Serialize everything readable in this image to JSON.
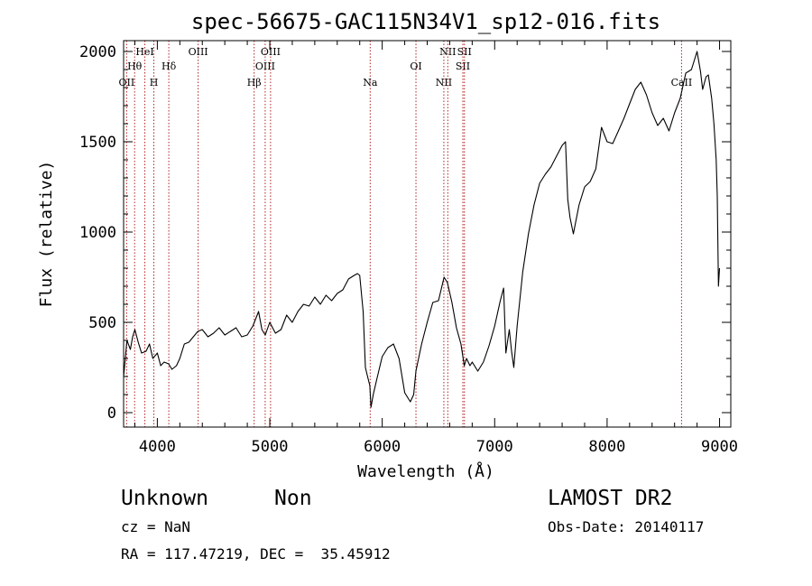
{
  "chart_data": {
    "type": "line",
    "title": "spec-56675-GAC115N34V1_sp12-016.fits",
    "xlabel": "Wavelength (Å)",
    "ylabel": "Flux (relative)",
    "xlim": [
      3700,
      9100
    ],
    "ylim": [
      -80,
      2060
    ],
    "xticks": [
      4000,
      5000,
      6000,
      7000,
      8000,
      9000
    ],
    "yticks": [
      0,
      500,
      1000,
      1500,
      2000
    ],
    "grid": false,
    "series": [
      {
        "values_note_unused": "",
        "x": [
          3700,
          3730,
          3760,
          3780,
          3800,
          3830,
          3860,
          3900,
          3930,
          3960,
          4000,
          4030,
          4060,
          4100,
          4130,
          4170,
          4200,
          4240,
          4280,
          4320,
          4360,
          4400,
          4450,
          4500,
          4550,
          4600,
          4650,
          4700,
          4750,
          4800,
          4850,
          4900,
          4930,
          4960,
          5000,
          5050,
          5100,
          5150,
          5200,
          5250,
          5300,
          5350,
          5400,
          5450,
          5500,
          5550,
          5600,
          5650,
          5700,
          5750,
          5780,
          5800,
          5830,
          5850,
          5870,
          5890,
          5900,
          5920,
          5950,
          6000,
          6050,
          6100,
          6150,
          6200,
          6250,
          6280,
          6300,
          6350,
          6400,
          6450,
          6500,
          6550,
          6580,
          6620,
          6660,
          6700,
          6730,
          6750,
          6780,
          6800,
          6850,
          6900,
          6950,
          7000,
          7050,
          7080,
          7100,
          7130,
          7150,
          7170,
          7200,
          7250,
          7300,
          7350,
          7400,
          7450,
          7500,
          7550,
          7600,
          7630,
          7650,
          7670,
          7700,
          7750,
          7800,
          7850,
          7900,
          7950,
          8000,
          8050,
          8100,
          8150,
          8200,
          8250,
          8300,
          8350,
          8400,
          8450,
          8500,
          8550,
          8600,
          8650,
          8700,
          8750,
          8800,
          8830,
          8850,
          8880,
          8900,
          8930,
          8950,
          8970,
          8980,
          8990,
          9000
        ],
        "y": [
          200,
          400,
          350,
          420,
          460,
          390,
          330,
          340,
          380,
          300,
          330,
          260,
          280,
          270,
          240,
          260,
          300,
          380,
          390,
          420,
          450,
          460,
          420,
          440,
          470,
          430,
          450,
          470,
          420,
          430,
          480,
          560,
          460,
          430,
          500,
          440,
          460,
          540,
          500,
          560,
          600,
          590,
          640,
          600,
          650,
          620,
          660,
          680,
          740,
          760,
          770,
          760,
          560,
          250,
          200,
          150,
          30,
          100,
          180,
          310,
          360,
          380,
          300,
          110,
          60,
          100,
          230,
          380,
          500,
          610,
          620,
          750,
          720,
          610,
          470,
          380,
          260,
          300,
          260,
          280,
          230,
          280,
          370,
          480,
          620,
          690,
          330,
          460,
          340,
          250,
          480,
          780,
          990,
          1150,
          1270,
          1320,
          1360,
          1420,
          1480,
          1500,
          1180,
          1080,
          990,
          1150,
          1250,
          1280,
          1350,
          1580,
          1500,
          1490,
          1560,
          1630,
          1710,
          1790,
          1830,
          1760,
          1660,
          1590,
          1630,
          1560,
          1660,
          1740,
          1880,
          1900,
          2000,
          1890,
          1790,
          1860,
          1870,
          1740,
          1600,
          1400,
          1200,
          700,
          800
        ]
      }
    ]
  },
  "lines": [
    {
      "label": "OII",
      "wl": 3727,
      "row": 3
    },
    {
      "label": "Hθ",
      "wl": 3798,
      "row": 2
    },
    {
      "label": "HeI",
      "wl": 3889,
      "row": 1
    },
    {
      "label": "H",
      "wl": 3969,
      "row": 3
    },
    {
      "label": "Hδ",
      "wl": 4102,
      "row": 2
    },
    {
      "label": "OIII",
      "wl": 4363,
      "row": 1
    },
    {
      "label": "Hβ",
      "wl": 4861,
      "row": 3
    },
    {
      "label": "OIII",
      "wl": 4959,
      "row": 2
    },
    {
      "label": "OIII",
      "wl": 5007,
      "row": 1
    },
    {
      "label": "Na",
      "wl": 5893,
      "row": 3
    },
    {
      "label": "OI",
      "wl": 6300,
      "row": 2
    },
    {
      "label": "NII",
      "wl": 6548,
      "row": 3
    },
    {
      "label": "NII",
      "wl": 6583,
      "row": 1
    },
    {
      "label": "SII",
      "wl": 6717,
      "row": 2
    },
    {
      "label": "SII",
      "wl": 6731,
      "row": 1
    },
    {
      "label": "CaII",
      "wl": 8662,
      "row": 3
    }
  ],
  "info": {
    "class_label": "Unknown",
    "subclass_label": "Non",
    "survey": "LAMOST DR2",
    "cz": "cz = NaN",
    "obs_date": "Obs-Date: 20140117",
    "coords": "RA = 117.47219, DEC =  35.45912"
  },
  "colors": {
    "line": "#000000",
    "marker": "#b22222",
    "axis": "#000000"
  }
}
